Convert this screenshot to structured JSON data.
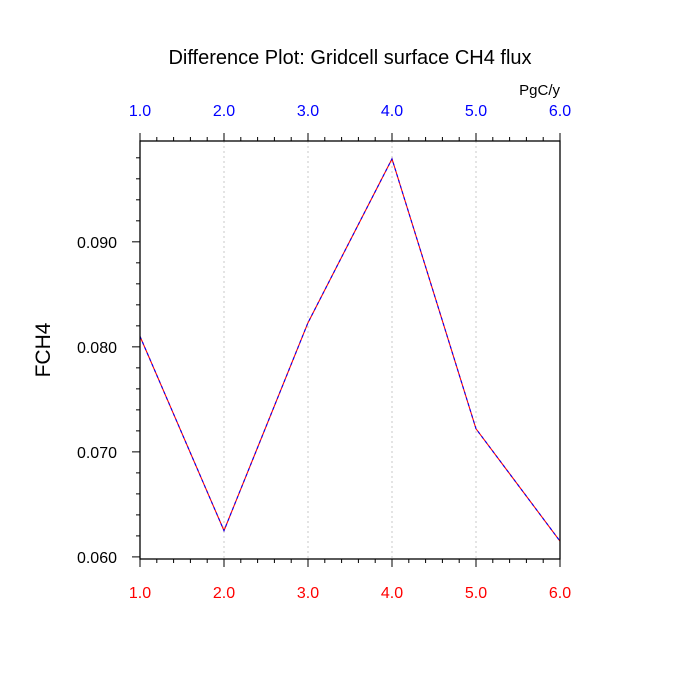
{
  "chart_data": {
    "type": "line",
    "title": "Difference Plot: Gridcell surface CH4 flux",
    "ylabel": "FCH4",
    "units": "PgC/y",
    "x": [
      1,
      2,
      3,
      4,
      5,
      6
    ],
    "x_tick_labels": [
      "1.0",
      "2.0",
      "3.0",
      "4.0",
      "5.0",
      "6.0"
    ],
    "xlim": [
      1,
      6
    ],
    "ylim": [
      0.0598,
      0.0996
    ],
    "y_ticks": [
      0.06,
      0.07,
      0.08,
      0.09
    ],
    "y_tick_labels": [
      "0.060",
      "0.070",
      "0.080",
      "0.090"
    ],
    "series": [
      {
        "values": [
          0.081,
          0.0625,
          0.0823,
          0.0979,
          0.0722,
          0.0615
        ]
      }
    ],
    "colors": {
      "bottom_ticks": "#ff0000",
      "top_ticks": "#0000ff",
      "line_a": "#ff0000",
      "line_b": "#0000ff",
      "grid": "#c8c8c8",
      "axes": "#000000"
    },
    "grid": "vertical-dotted"
  }
}
